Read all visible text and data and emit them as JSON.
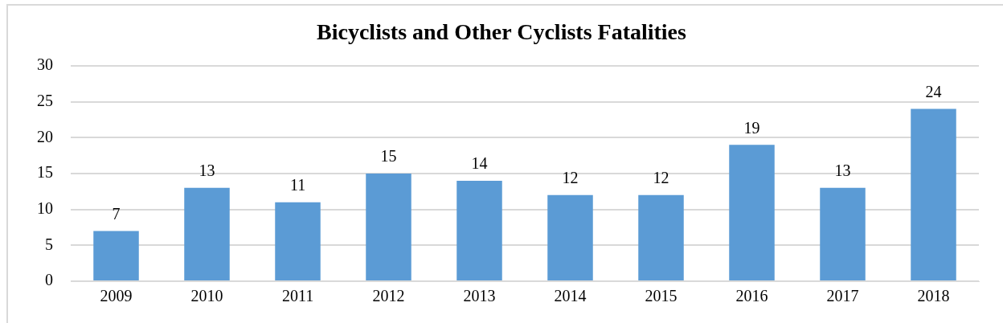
{
  "chart_data": {
    "type": "bar",
    "title": "Bicyclists and Other Cyclists Fatalities",
    "categories": [
      "2009",
      "2010",
      "2011",
      "2012",
      "2013",
      "2014",
      "2015",
      "2016",
      "2017",
      "2018"
    ],
    "values": [
      7,
      13,
      11,
      15,
      14,
      12,
      12,
      19,
      13,
      24
    ],
    "color": "#5b9bd5",
    "ylim": [
      0,
      30
    ],
    "yticks": [
      0,
      5,
      10,
      15,
      20,
      25,
      30
    ],
    "grid": "y",
    "data_labels": true,
    "legend": false
  }
}
